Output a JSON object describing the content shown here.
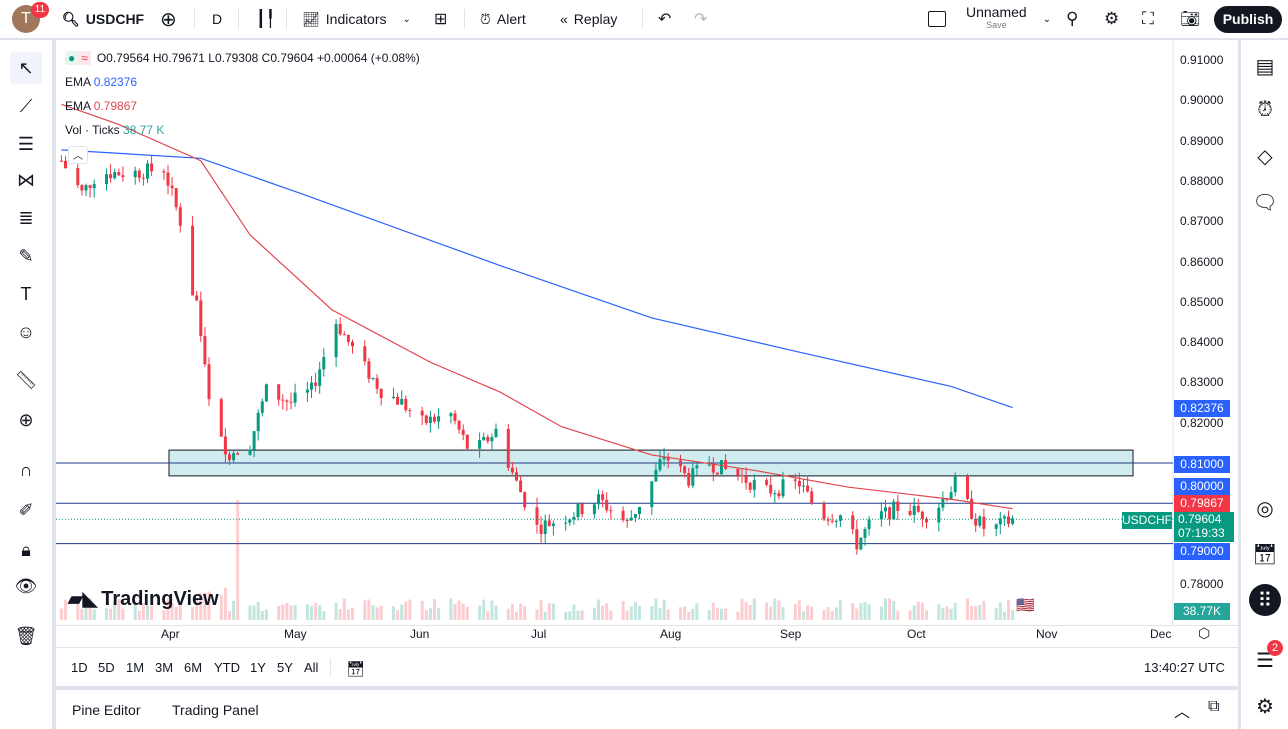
{
  "topbar": {
    "avatar_letter": "T",
    "notifications": "11",
    "symbol": "USDCHF",
    "interval": "D",
    "indicators": "Indicators",
    "alert": "Alert",
    "replay": "Replay",
    "layout_name": "Unnamed",
    "layout_sub": "Save",
    "publish": "Publish"
  },
  "legend": {
    "ohlc": "O0.79564 H0.79671 L0.79308 C0.79604 +0.00064 (+0.08%)",
    "ema1_label": "EMA",
    "ema1_value": "0.82376",
    "ema2_label": "EMA",
    "ema2_value": "0.79867",
    "vol_label": "Vol · Ticks",
    "vol_value": "38.77 K"
  },
  "price_axis": {
    "ticks": [
      "0.91000",
      "0.90000",
      "0.89000",
      "0.88000",
      "0.87000",
      "0.86000",
      "0.85000",
      "0.84000",
      "0.83000",
      "0.82000",
      "0.78000"
    ],
    "labels": {
      "ema200": "0.82376",
      "level_081": "0.81000",
      "level_080": "0.80000",
      "ema50": "0.79867",
      "symbol": "USDCHF",
      "last": "0.79604",
      "countdown": "07:19:33",
      "level_079": "0.79000",
      "volume": "38.77K"
    }
  },
  "time_axis": {
    "ticks": [
      "Apr",
      "May",
      "Jun",
      "Jul",
      "Aug",
      "Sep",
      "Oct",
      "Nov",
      "Dec"
    ]
  },
  "ranges": [
    "1D",
    "5D",
    "1M",
    "3M",
    "6M",
    "YTD",
    "1Y",
    "5Y",
    "All"
  ],
  "clock": "13:40:27 UTC",
  "bottom": {
    "pine": "Pine Editor",
    "trading": "Trading Panel"
  },
  "right_badge": "2",
  "watermark": "TradingView",
  "colors": {
    "up": "#089981",
    "down": "#f23645",
    "ema200": "#2962ff",
    "ema50": "#e0474f",
    "level": "#2962ff",
    "zone_fill": "#d1ecef"
  },
  "chart_data": {
    "type": "candlestick",
    "symbol": "USDCHF",
    "interval": "D",
    "ylim": [
      0.775,
      0.913
    ],
    "horizontal_levels": [
      0.81,
      0.8,
      0.79
    ],
    "zone": [
      0.8068,
      0.8132
    ],
    "price_path": [
      [
        "2025-03-06",
        0.885
      ],
      [
        "2025-03-11",
        0.877
      ],
      [
        "2025-03-15",
        0.882
      ],
      [
        "2025-03-23",
        0.882
      ],
      [
        "2025-03-31",
        0.883
      ],
      [
        "2025-04-04",
        0.87
      ],
      [
        "2025-04-06",
        0.855
      ],
      [
        "2025-04-08",
        0.85
      ],
      [
        "2025-04-11",
        0.825
      ],
      [
        "2025-04-15",
        0.812
      ],
      [
        "2025-04-21",
        0.815
      ],
      [
        "2025-04-25",
        0.828
      ],
      [
        "2025-05-01",
        0.825
      ],
      [
        "2025-05-06",
        0.828
      ],
      [
        "2025-05-12",
        0.845
      ],
      [
        "2025-05-18",
        0.835
      ],
      [
        "2025-05-23",
        0.828
      ],
      [
        "2025-05-28",
        0.825
      ],
      [
        "2025-06-02",
        0.82
      ],
      [
        "2025-06-09",
        0.822
      ],
      [
        "2025-06-14",
        0.812
      ],
      [
        "2025-06-20",
        0.818
      ],
      [
        "2025-06-25",
        0.805
      ],
      [
        "2025-06-30",
        0.794
      ],
      [
        "2025-07-08",
        0.797
      ],
      [
        "2025-07-15",
        0.801
      ],
      [
        "2025-07-22",
        0.795
      ],
      [
        "2025-07-27",
        0.803
      ],
      [
        "2025-07-31",
        0.812
      ],
      [
        "2025-08-06",
        0.806
      ],
      [
        "2025-08-11",
        0.81
      ],
      [
        "2025-08-18",
        0.807
      ],
      [
        "2025-08-25",
        0.803
      ],
      [
        "2025-09-02",
        0.805
      ],
      [
        "2025-09-07",
        0.797
      ],
      [
        "2025-09-12",
        0.797
      ],
      [
        "2025-09-16",
        0.79
      ],
      [
        "2025-09-20",
        0.796
      ],
      [
        "2025-09-26",
        0.799
      ],
      [
        "2025-10-04",
        0.797
      ],
      [
        "2025-10-10",
        0.805
      ],
      [
        "2025-10-15",
        0.796
      ],
      [
        "2025-10-18",
        0.793
      ],
      [
        "2025-10-24",
        0.79604
      ]
    ],
    "ema_slow": [
      [
        "2025-03-06",
        0.8877
      ],
      [
        "2025-04-09",
        0.8856
      ],
      [
        "2025-05-03",
        0.877
      ],
      [
        "2025-06-21",
        0.859
      ],
      [
        "2025-07-28",
        0.846
      ],
      [
        "2025-09-02",
        0.8375
      ],
      [
        "2025-10-09",
        0.829
      ],
      [
        "2025-10-24",
        0.82376
      ]
    ],
    "ema_fast": [
      [
        "2025-03-06",
        0.899
      ],
      [
        "2025-03-20",
        0.894
      ],
      [
        "2025-04-09",
        0.885
      ],
      [
        "2025-04-21",
        0.8666
      ],
      [
        "2025-05-11",
        0.848
      ],
      [
        "2025-06-04",
        0.835
      ],
      [
        "2025-06-21",
        0.8276
      ],
      [
        "2025-07-06",
        0.819
      ],
      [
        "2025-07-28",
        0.812
      ],
      [
        "2025-08-23",
        0.808
      ],
      [
        "2025-09-14",
        0.804
      ],
      [
        "2025-10-09",
        0.801
      ],
      [
        "2025-10-24",
        0.79867
      ]
    ]
  }
}
